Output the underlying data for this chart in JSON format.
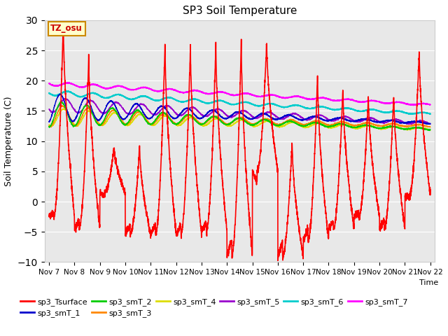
{
  "title": "SP3 Soil Temperature",
  "ylabel": "Soil Temperature (C)",
  "xlabel": "Time",
  "ylim": [
    -10,
    30
  ],
  "yticks": [
    -10,
    -5,
    0,
    5,
    10,
    15,
    20,
    25,
    30
  ],
  "xtick_labels": [
    "Nov 7",
    "Nov 8",
    "Nov 9",
    "Nov 10",
    "Nov 11",
    "Nov 12",
    "Nov 13",
    "Nov 14",
    "Nov 15",
    "Nov 16",
    "Nov 17",
    "Nov 18",
    "Nov 19",
    "Nov 20",
    "Nov 21",
    "Nov 22"
  ],
  "xtick_positions": [
    0,
    24,
    48,
    72,
    96,
    120,
    144,
    168,
    192,
    216,
    240,
    264,
    288,
    312,
    336,
    360
  ],
  "annotation": "TZ_osu",
  "bg_color": "#e8e8e8",
  "series_colors": {
    "sp3_Tsurface": "#ff0000",
    "sp3_smT_1": "#0000cc",
    "sp3_smT_2": "#00cc00",
    "sp3_smT_3": "#ff8800",
    "sp3_smT_4": "#dddd00",
    "sp3_smT_5": "#9900cc",
    "sp3_smT_6": "#00cccc",
    "sp3_smT_7": "#ff00ff"
  },
  "day_peaks": [
    30,
    24,
    9,
    9,
    26,
    25.5,
    26,
    26.5,
    26.5,
    10,
    21,
    19,
    17.5,
    18,
    25,
    25
  ],
  "day_troughs": [
    -2.5,
    -4.5,
    1.5,
    -5.5,
    -5.5,
    -5.5,
    -5.0,
    -9.0,
    5,
    -9.2,
    -6.5,
    -4.5,
    -2.5,
    -4.5,
    1,
    2
  ],
  "smT_1_start": 15.5,
  "smT_1_end": 13.0,
  "smT_2_start": 14.5,
  "smT_2_end": 12.0,
  "smT_3_start": 14.2,
  "smT_3_end": 12.5,
  "smT_4_start": 14.0,
  "smT_4_end": 12.0,
  "smT_5_start": 16.0,
  "smT_5_end": 13.0,
  "smT_6_start": 18.0,
  "smT_6_end": 14.5,
  "smT_7_start": 19.5,
  "smT_7_end": 16.0
}
